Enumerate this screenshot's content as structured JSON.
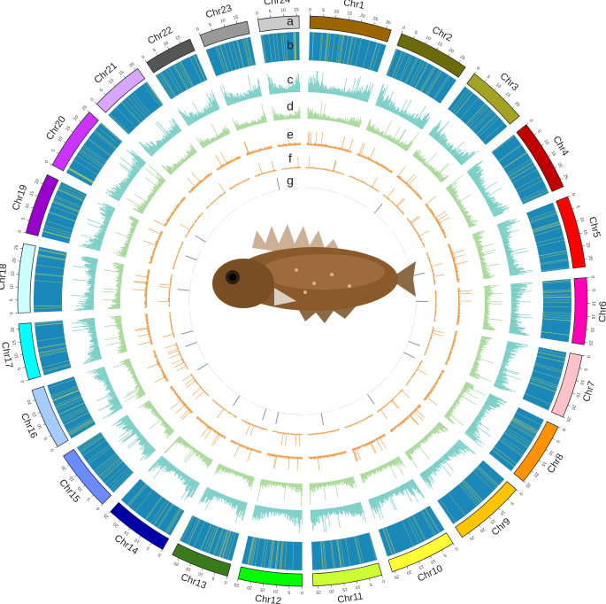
{
  "chromosomes": [
    {
      "name": "Chr1",
      "color": "#9B6500",
      "length": 32
    },
    {
      "name": "Chr2",
      "color": "#6B6B0C",
      "length": 28
    },
    {
      "name": "Chr3",
      "color": "#A3A323",
      "length": 24
    },
    {
      "name": "Chr4",
      "color": "#C10000",
      "length": 28
    },
    {
      "name": "Chr5",
      "color": "#FF0000",
      "length": 28
    },
    {
      "name": "Chr6",
      "color": "#FF00B4",
      "length": 26
    },
    {
      "name": "Chr7",
      "color": "#FFC2C8",
      "length": 25
    },
    {
      "name": "Chr8",
      "color": "#FF9200",
      "length": 25
    },
    {
      "name": "Chr9",
      "color": "#FFC400",
      "length": 28
    },
    {
      "name": "Chr10",
      "color": "#FFFF33",
      "length": 26
    },
    {
      "name": "Chr11",
      "color": "#CCFF33",
      "length": 27
    },
    {
      "name": "Chr12",
      "color": "#00FF00",
      "length": 25
    },
    {
      "name": "Chr13",
      "color": "#3A7A1C",
      "length": 23
    },
    {
      "name": "Chr14",
      "color": "#0000A8",
      "length": 25
    },
    {
      "name": "Chr15",
      "color": "#6B8CFF",
      "length": 24
    },
    {
      "name": "Chr16",
      "color": "#A6CCFF",
      "length": 24
    },
    {
      "name": "Chr17",
      "color": "#00FFFF",
      "length": 22
    },
    {
      "name": "Chr18",
      "color": "#CCFFFF",
      "length": 27
    },
    {
      "name": "Chr19",
      "color": "#9900CC",
      "length": 24
    },
    {
      "name": "Chr20",
      "color": "#CC33FF",
      "length": 25
    },
    {
      "name": "Chr21",
      "color": "#D9A6FF",
      "length": 21
    },
    {
      "name": "Chr22",
      "color": "#555555",
      "length": 19
    },
    {
      "name": "Chr23",
      "color": "#999999",
      "length": 19
    },
    {
      "name": "Chr24",
      "color": "#CCCCCC",
      "length": 16
    }
  ],
  "track_letters": [
    "a",
    "b",
    "c",
    "d",
    "e",
    "f",
    "g"
  ],
  "track_colors": {
    "b_base": "#1A88B8",
    "b_stripe": "#C9D45B",
    "c": "#6CC9C0",
    "d": "#9BD38A",
    "e": "#F19A45",
    "f": "#F19A45",
    "g": "#8A8FB0"
  },
  "center_image": "fish"
}
